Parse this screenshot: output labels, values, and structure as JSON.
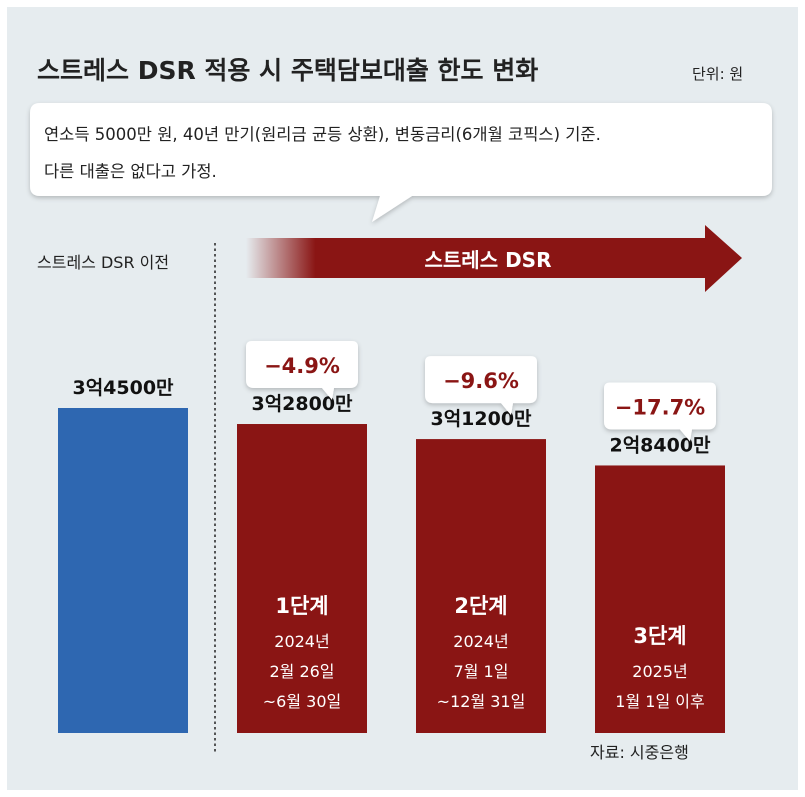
{
  "chart_data": {
    "type": "bar",
    "title": "스트레스 DSR 적용 시 주택담보대출 한도 변화",
    "unit_label": "단위: 원",
    "note_lines": [
      "연소득 5000만 원, 40년 만기(원리금 균등 상환), 변동금리(6개월 코픽스) 기준.",
      "다른 대출은 없다고 가정."
    ],
    "before_label": "스트레스 DSR 이전",
    "arrow_label": "스트레스 DSR",
    "source": "자료: 시중은행",
    "unit": "만원",
    "ylim": [
      0,
      34500
    ],
    "categories": [
      {
        "value": 34500,
        "value_label": "3억4500만",
        "stage": "",
        "date_lines": [],
        "change": "",
        "color": "#2e67b1"
      },
      {
        "value": 32800,
        "value_label": "3억2800만",
        "stage": "1단계",
        "date_lines": [
          "2024년",
          "2월 26일",
          "~6월 30일"
        ],
        "change": "−4.9%",
        "color": "#8a1514"
      },
      {
        "value": 31200,
        "value_label": "3억1200만",
        "stage": "2단계",
        "date_lines": [
          "2024년",
          "7월 1일",
          "~12월 31일"
        ],
        "change": "−9.6%",
        "color": "#8a1514"
      },
      {
        "value": 28400,
        "value_label": "2억8400만",
        "stage": "3단계",
        "date_lines": [
          "2025년",
          "1월 1일 이후"
        ],
        "change": "−17.7%",
        "color": "#8a1514"
      }
    ]
  }
}
